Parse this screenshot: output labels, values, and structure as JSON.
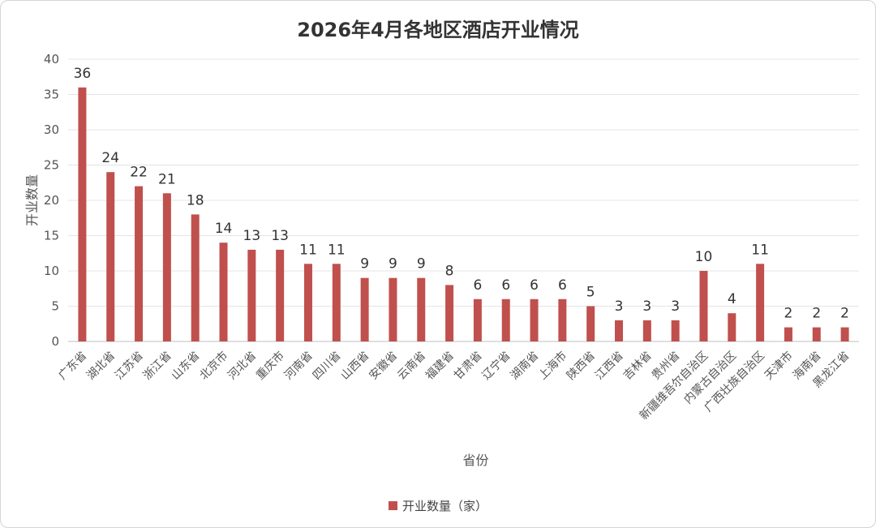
{
  "chart_data": {
    "type": "bar",
    "title": "2026年4月各地区酒店开业情况",
    "xlabel": "省份",
    "ylabel": "开业数量",
    "ylim": [
      0,
      40
    ],
    "yticks": [
      0,
      5,
      10,
      15,
      20,
      25,
      30,
      35,
      40
    ],
    "grid": true,
    "legend_position": "bottom",
    "bar_color": "#c0504d",
    "categories": [
      "广东省",
      "湖北省",
      "江苏省",
      "浙江省",
      "山东省",
      "北京市",
      "河北省",
      "重庆市",
      "河南省",
      "四川省",
      "山西省",
      "安徽省",
      "云南省",
      "福建省",
      "甘肃省",
      "辽宁省",
      "湖南省",
      "上海市",
      "陕西省",
      "江西省",
      "吉林省",
      "贵州省",
      "新疆维吾尔自治区",
      "内蒙古自治区",
      "广西壮族自治区",
      "天津市",
      "海南省",
      "黑龙江省"
    ],
    "series": [
      {
        "name": "开业数量（家）",
        "values": [
          36,
          24,
          22,
          21,
          18,
          14,
          13,
          13,
          11,
          11,
          9,
          9,
          9,
          8,
          6,
          6,
          6,
          6,
          5,
          3,
          3,
          3,
          10,
          4,
          11,
          2,
          2,
          2
        ]
      }
    ]
  }
}
